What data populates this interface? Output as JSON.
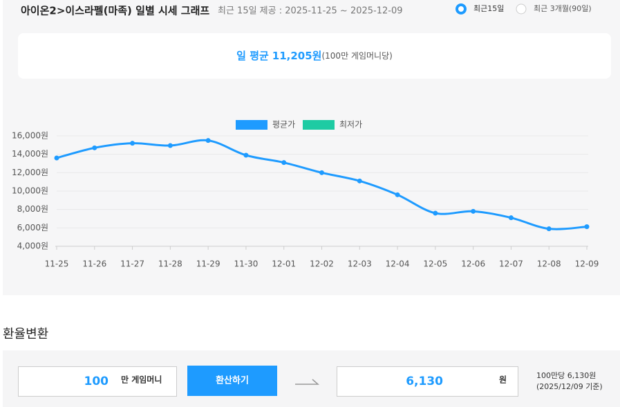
{
  "header": {
    "title": "아이온2>이스라펠(마족) 일별 시세 그래프",
    "subtitle": "최근 15일 제공 : 2025-11-25 ~ 2025-12-09",
    "options": [
      {
        "label": "최근15일",
        "selected": true
      },
      {
        "label": "최근 3개월(90일)",
        "selected": false
      }
    ]
  },
  "summary": {
    "label": "일 평균",
    "value": "11,205원",
    "unit": "(100만 게임머니당)"
  },
  "chart_data": {
    "type": "line",
    "categories": [
      "11-25",
      "11-26",
      "11-27",
      "11-28",
      "11-29",
      "11-30",
      "12-01",
      "12-02",
      "12-03",
      "12-04",
      "12-05",
      "12-06",
      "12-07",
      "12-08",
      "12-09"
    ],
    "series": [
      {
        "name": "평균가",
        "color": "#1e9bff",
        "values": [
          13600,
          14700,
          15200,
          14950,
          15500,
          13900,
          13100,
          12000,
          11100,
          9600,
          7600,
          7800,
          7100,
          5900,
          6130
        ]
      },
      {
        "name": "최저가",
        "color": "#1ecba3",
        "values": [
          null,
          null,
          null,
          null,
          null,
          null,
          null,
          null,
          null,
          null,
          null,
          null,
          null,
          null,
          null
        ]
      }
    ],
    "ylim": [
      4000,
      16000
    ],
    "yticks": [
      {
        "value": 4000,
        "label": "4,000원"
      },
      {
        "value": 6000,
        "label": "6,000원"
      },
      {
        "value": 8000,
        "label": "8,000원"
      },
      {
        "value": 10000,
        "label": "10,000원"
      },
      {
        "value": 12000,
        "label": "12,000원"
      },
      {
        "value": 14000,
        "label": "14,000원"
      },
      {
        "value": 16000,
        "label": "16,000원"
      }
    ],
    "grid": true,
    "legend": "top"
  },
  "converter": {
    "heading": "환율변환",
    "amount": "100",
    "amount_unit": "만 게임머니",
    "button": "환산하기",
    "result": "6,130",
    "result_unit": "원",
    "note": [
      "100만당 6,130원",
      "(2025/12/09 기준)"
    ]
  }
}
